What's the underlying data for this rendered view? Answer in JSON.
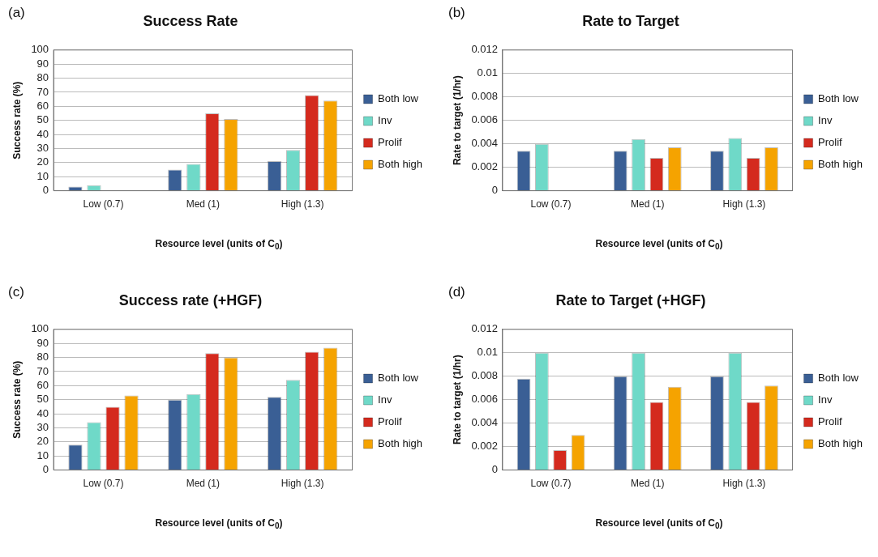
{
  "chart_data": [
    {
      "type": "bar",
      "title": "Success Rate",
      "xlabel": "Resource level (units of C$_{0}$)",
      "ylabel": "Success rate (%)",
      "annotations": [
        "(a)"
      ],
      "categories": [
        "Low (0.7)",
        "Med (1)",
        "High (1.3)"
      ],
      "ylim": [
        0,
        100
      ],
      "yticks": [
        0,
        10,
        20,
        30,
        40,
        50,
        60,
        70,
        80,
        90,
        100
      ],
      "grid": "y",
      "legend": "right",
      "series": [
        {
          "name": "Both low",
          "color": "#3a5f95",
          "values": [
            3,
            15,
            21
          ]
        },
        {
          "name": "Inv",
          "color": "#6fd9c8",
          "values": [
            4,
            19,
            29
          ]
        },
        {
          "name": "Prolif",
          "color": "#d42a1e",
          "values": [
            0,
            55,
            68
          ]
        },
        {
          "name": "Both high",
          "color": "#f5a300",
          "values": [
            0,
            51,
            64
          ]
        }
      ]
    },
    {
      "type": "bar",
      "title": "Rate to Target",
      "xlabel": "Resource level (units of C$_{0}$)",
      "ylabel": "Rate to target (1/hr)",
      "annotations": [
        "(b)"
      ],
      "categories": [
        "Low (0.7)",
        "Med (1)",
        "High (1.3)"
      ],
      "ylim": [
        0,
        0.012
      ],
      "yticks": [
        0,
        0.002,
        0.004,
        0.006,
        0.008,
        0.01,
        0.012
      ],
      "grid": "y",
      "legend": "right",
      "series": [
        {
          "name": "Both low",
          "color": "#3a5f95",
          "values": [
            0.0034,
            0.0034,
            0.0034
          ]
        },
        {
          "name": "Inv",
          "color": "#6fd9c8",
          "values": [
            0.004,
            0.0044,
            0.0045
          ]
        },
        {
          "name": "Prolif",
          "color": "#d42a1e",
          "values": [
            0,
            0.0028,
            0.0028
          ]
        },
        {
          "name": "Both high",
          "color": "#f5a300",
          "values": [
            0,
            0.0037,
            0.0037
          ]
        }
      ]
    },
    {
      "type": "bar",
      "title": "Success rate (+HGF)",
      "xlabel": "Resource level (units of C$_{0}$)",
      "ylabel": "Success rate (%)",
      "annotations": [
        "(c)"
      ],
      "categories": [
        "Low (0.7)",
        "Med (1)",
        "High (1.3)"
      ],
      "ylim": [
        0,
        100
      ],
      "yticks": [
        0,
        10,
        20,
        30,
        40,
        50,
        60,
        70,
        80,
        90,
        100
      ],
      "grid": "y",
      "legend": "right",
      "series": [
        {
          "name": "Both low",
          "color": "#3a5f95",
          "values": [
            18,
            50,
            52
          ]
        },
        {
          "name": "Inv",
          "color": "#6fd9c8",
          "values": [
            34,
            54,
            64
          ]
        },
        {
          "name": "Prolif",
          "color": "#d42a1e",
          "values": [
            45,
            83,
            84
          ]
        },
        {
          "name": "Both high",
          "color": "#f5a300",
          "values": [
            53,
            80,
            87
          ]
        }
      ]
    },
    {
      "type": "bar",
      "title": "Rate to Target (+HGF)",
      "xlabel": "Resource level (units of C$_{0}$)",
      "ylabel": "Rate to target (1/hr)",
      "annotations": [
        "(d)"
      ],
      "categories": [
        "Low (0.7)",
        "Med (1)",
        "High (1.3)"
      ],
      "ylim": [
        0,
        0.012
      ],
      "yticks": [
        0,
        0.002,
        0.004,
        0.006,
        0.008,
        0.01,
        0.012
      ],
      "grid": "y",
      "legend": "right",
      "series": [
        {
          "name": "Both low",
          "color": "#3a5f95",
          "values": [
            0.0078,
            0.008,
            0.008
          ]
        },
        {
          "name": "Inv",
          "color": "#6fd9c8",
          "values": [
            0.01,
            0.01,
            0.01
          ]
        },
        {
          "name": "Prolif",
          "color": "#d42a1e",
          "values": [
            0.0017,
            0.0058,
            0.0058
          ]
        },
        {
          "name": "Both high",
          "color": "#f5a300",
          "values": [
            0.003,
            0.0071,
            0.0072
          ]
        }
      ]
    }
  ]
}
